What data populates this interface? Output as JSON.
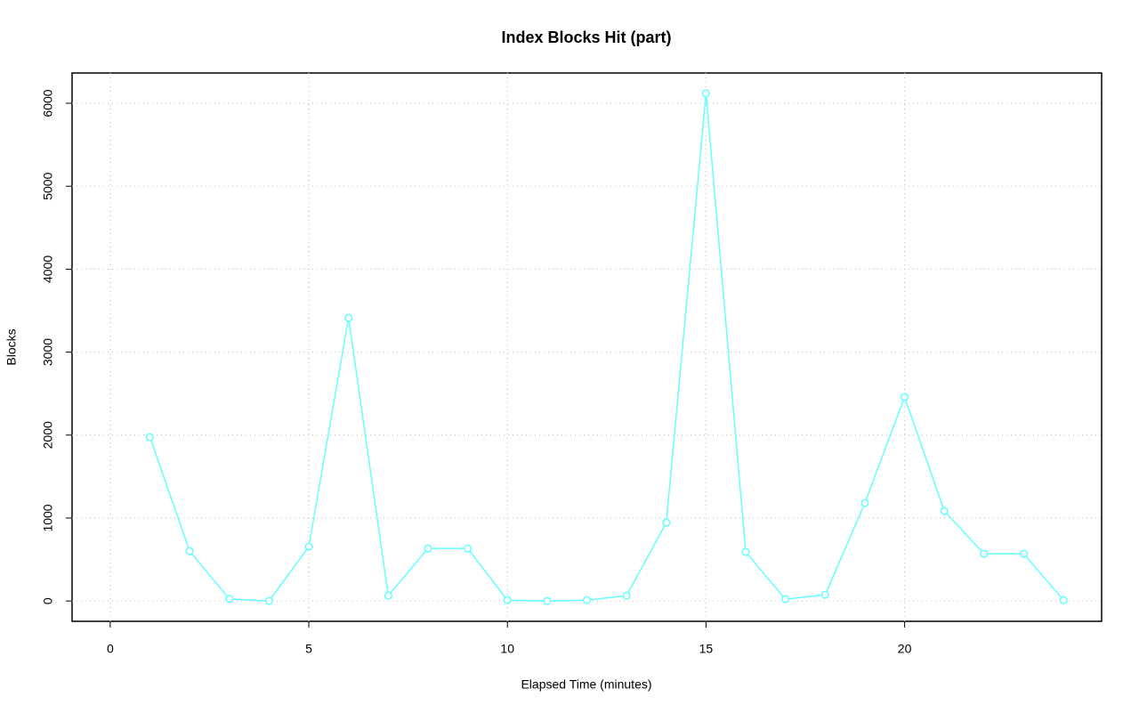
{
  "chart_data": {
    "type": "line",
    "title": "Index Blocks Hit (part)",
    "x_label": "Elapsed Time (minutes)",
    "y_label": "Blocks",
    "series": [
      {
        "name": "Index Blocks Hit",
        "color": "#66ffff",
        "x": [
          1,
          2,
          3,
          4,
          5,
          6,
          7,
          8,
          9,
          10,
          11,
          12,
          13,
          14,
          15,
          16,
          17,
          18,
          19,
          20,
          21,
          22,
          23,
          24
        ],
        "values": [
          1975,
          601,
          25,
          0,
          655,
          3413,
          64,
          633,
          633,
          10,
          0,
          10,
          64,
          945,
          6118,
          590,
          21,
          75,
          1181,
          2458,
          1084,
          569,
          569,
          10
        ]
      }
    ],
    "xlim": [
      -0.96,
      24.96
    ],
    "xticks": [
      0,
      5,
      10,
      15,
      20
    ],
    "ylim": [
      -245,
      6365
    ],
    "yticks": [
      0,
      1000,
      2000,
      3000,
      4000,
      5000,
      6000
    ],
    "grid": true
  }
}
